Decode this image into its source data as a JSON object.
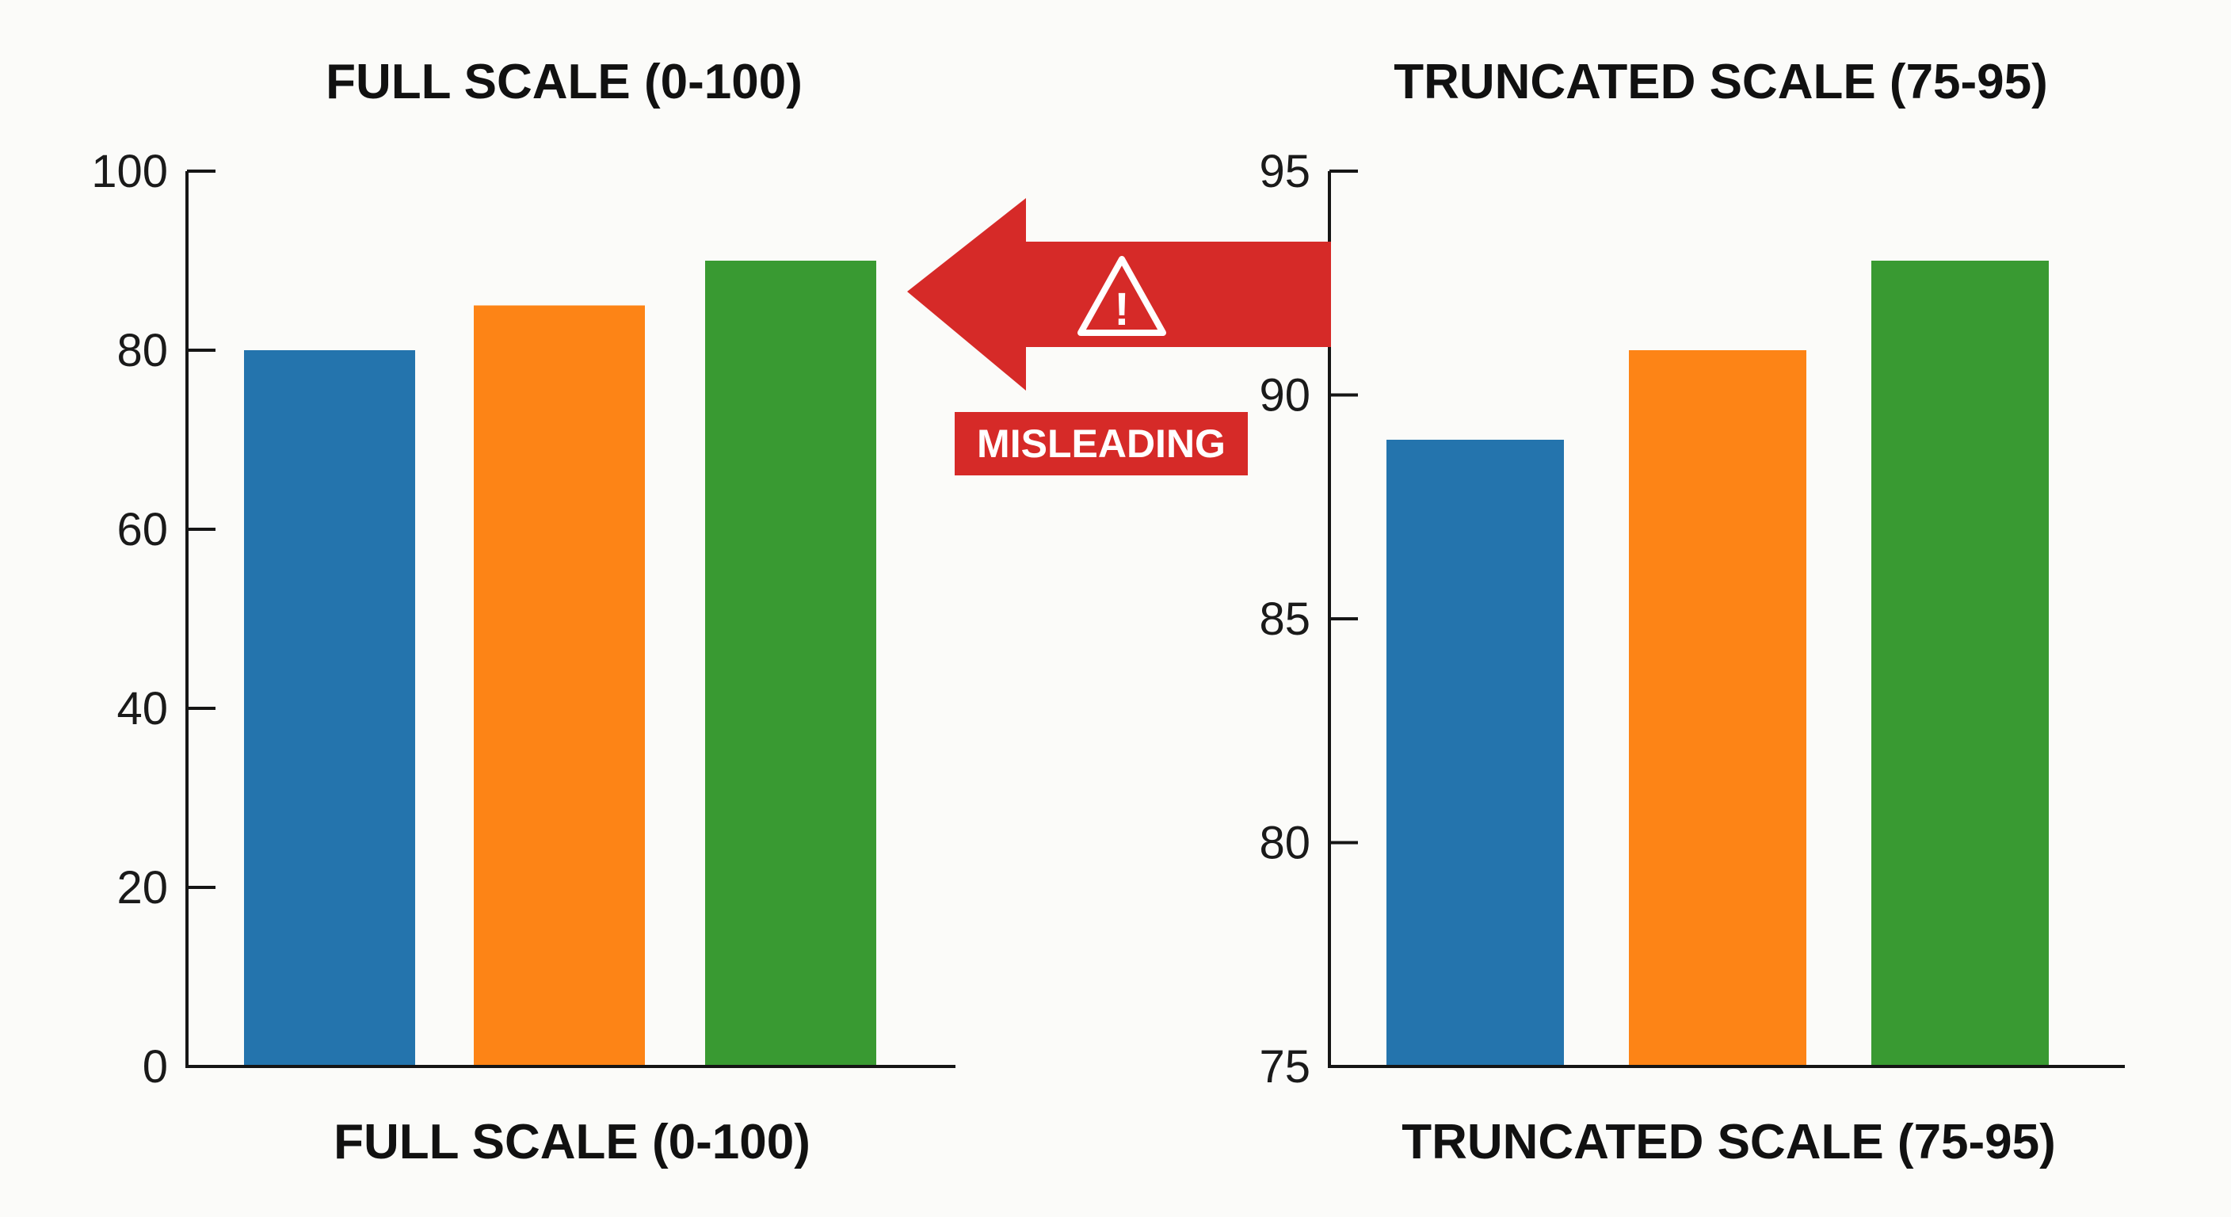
{
  "annotation": {
    "label": "MISLEADING",
    "arrow_icon": "left-arrow-icon",
    "warning_icon": "warning-triangle-icon",
    "warning_glyph": "!",
    "color": "#d62a28"
  },
  "chart_data": [
    {
      "type": "bar",
      "title": "FULL SCALE (0-100)",
      "xlabel": "FULL SCALE (0-100)",
      "ylabel": "",
      "ylim": [
        0,
        100
      ],
      "yticks": [
        0,
        20,
        40,
        60,
        80,
        100
      ],
      "grid": false,
      "legend": "none",
      "values": [
        80,
        85,
        90
      ],
      "colors": [
        "#2474ad",
        "#fd8416",
        "#399a32"
      ]
    },
    {
      "type": "bar",
      "title": "TRUNCATED SCALE (75-95)",
      "xlabel": "TRUNCATED SCALE (75-95)",
      "ylabel": "",
      "ylim": [
        75,
        95
      ],
      "yticks": [
        75,
        80,
        85,
        90,
        95
      ],
      "grid": false,
      "legend": "none",
      "values": [
        89,
        91,
        93
      ],
      "colors": [
        "#2474ad",
        "#fd8416",
        "#399a32"
      ]
    }
  ]
}
